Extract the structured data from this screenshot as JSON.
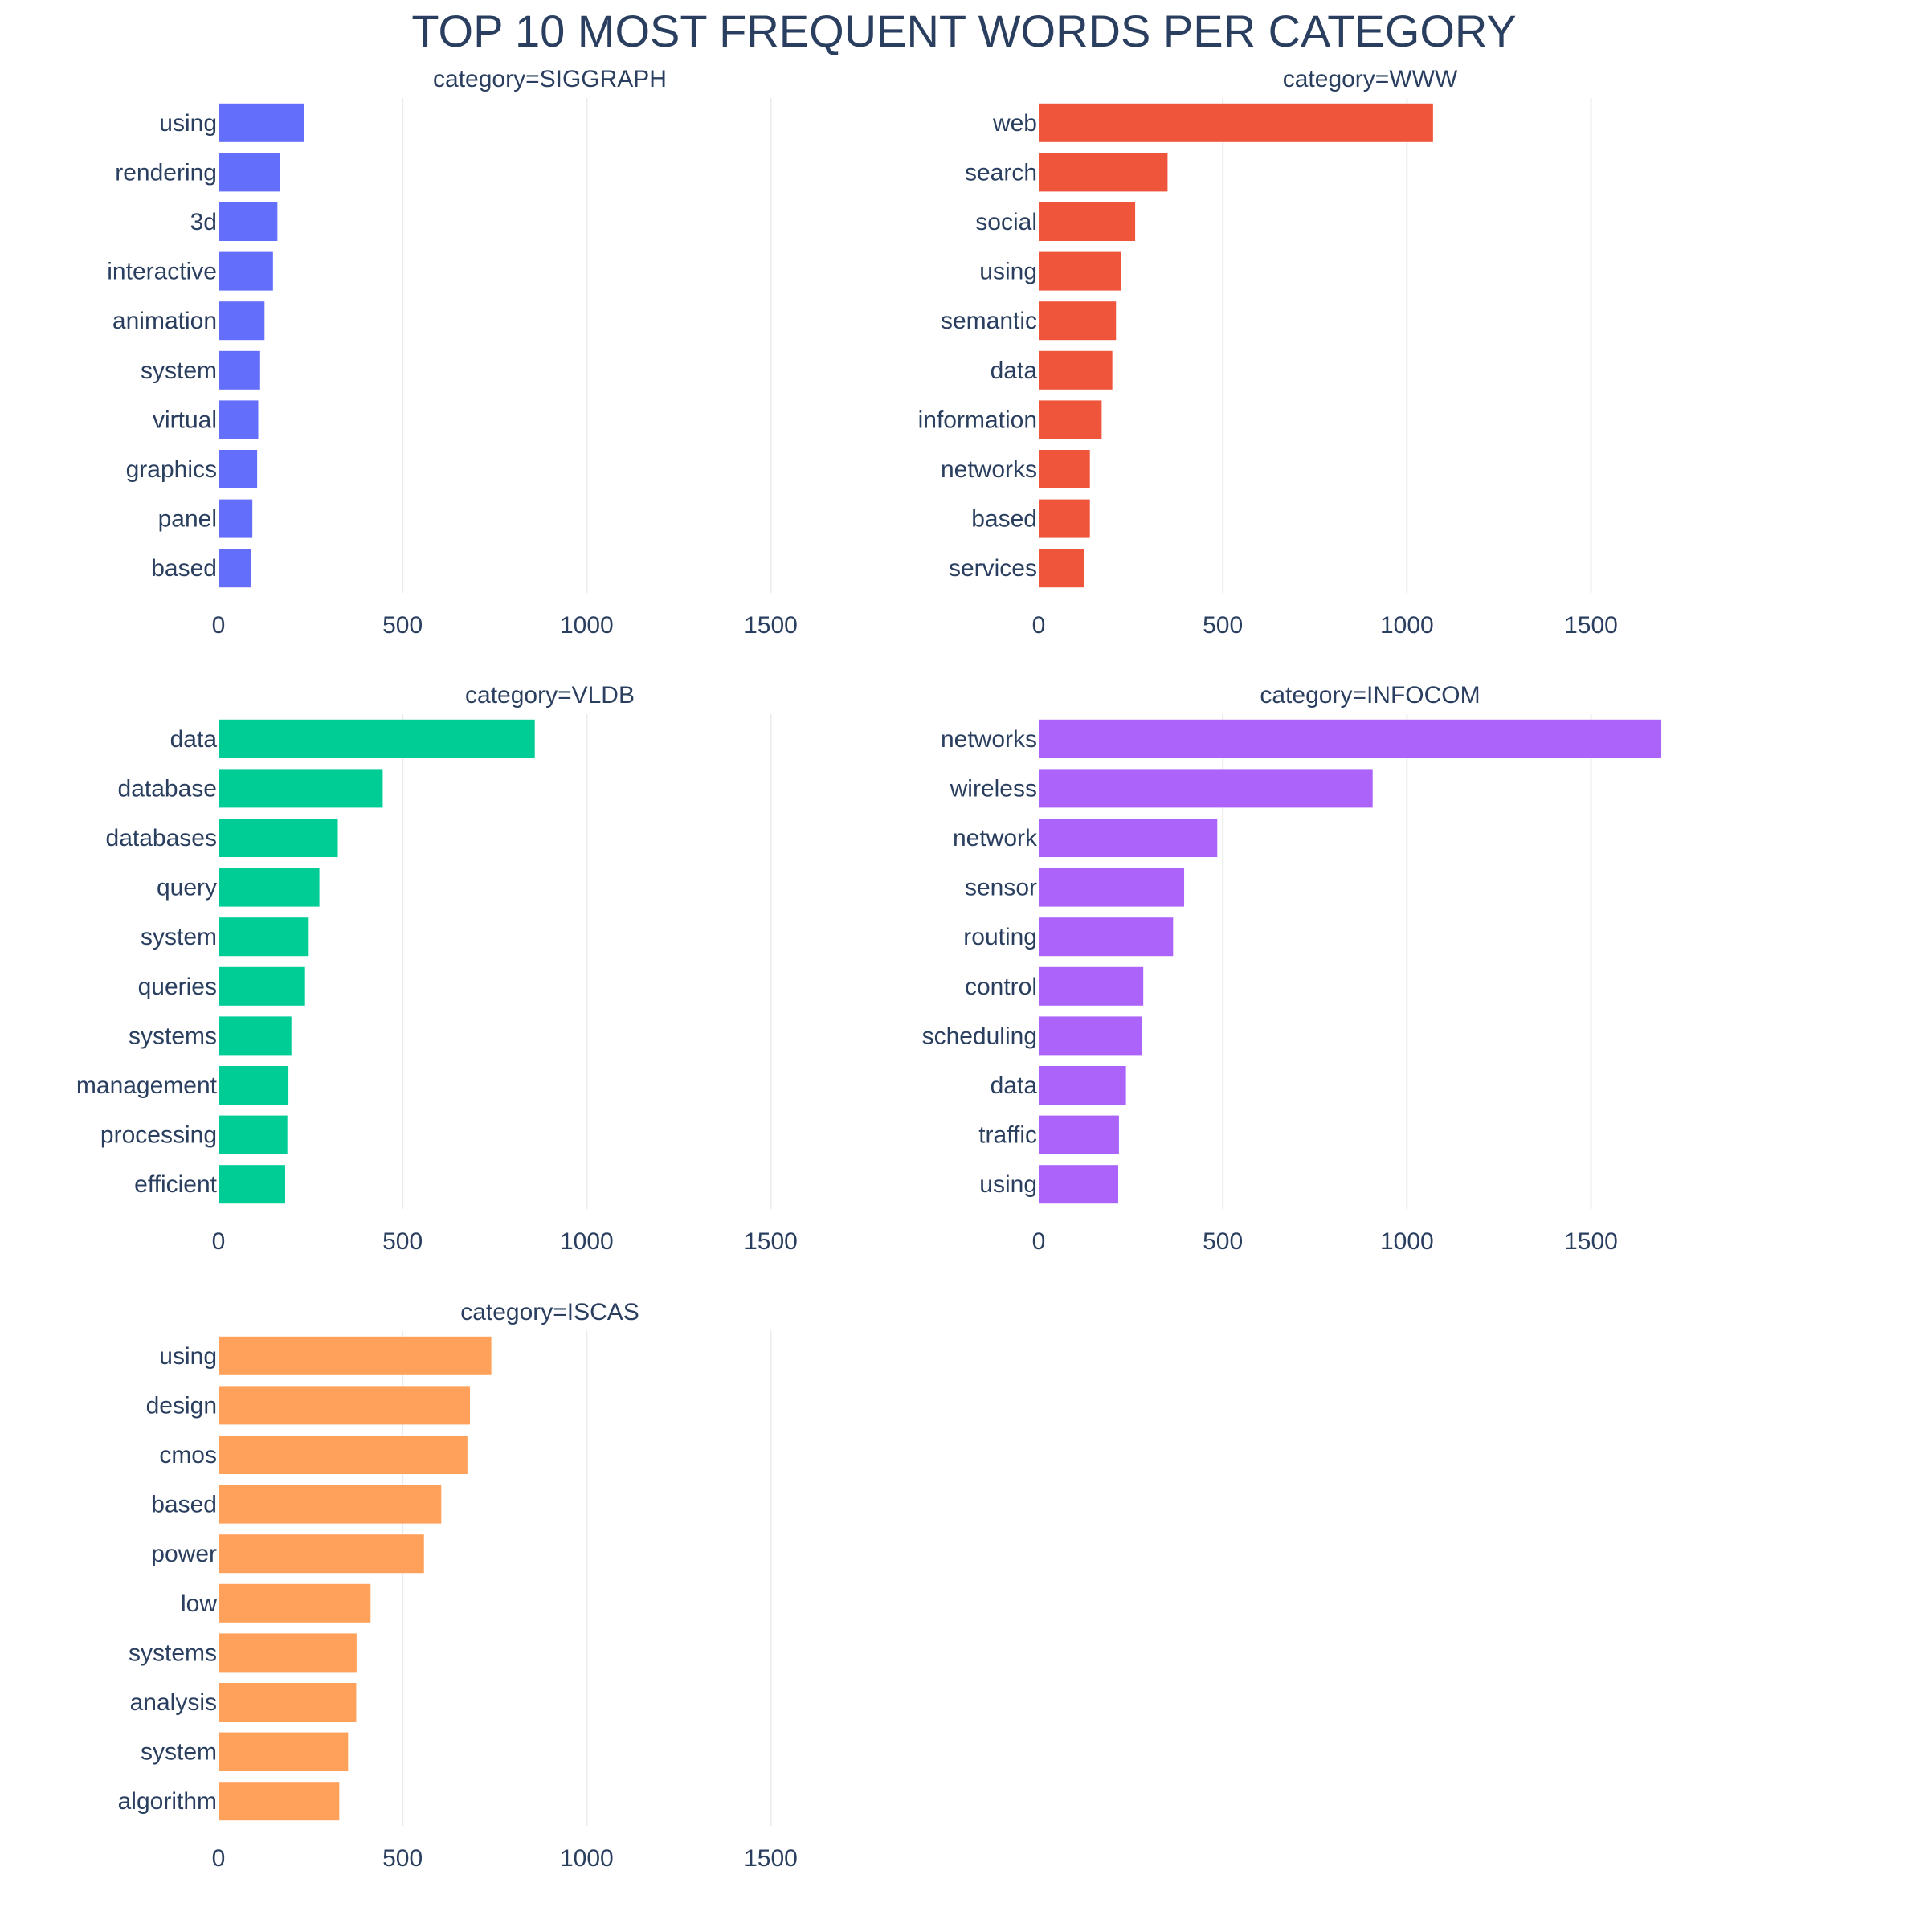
{
  "title": "TOP 10 MOST FREQUENT WORDS PER CATEGORY",
  "chart_data": [
    {
      "type": "bar",
      "orientation": "horizontal",
      "title": "category=SIGGRAPH",
      "color": "#636efa",
      "categories": [
        "using",
        "rendering",
        "3d",
        "interactive",
        "animation",
        "system",
        "virtual",
        "graphics",
        "panel",
        "based"
      ],
      "values": [
        232,
        167,
        160,
        148,
        125,
        113,
        108,
        105,
        92,
        88
      ],
      "xlim": [
        0,
        1800
      ],
      "xticks": [
        "0",
        "500",
        "1000",
        "1500"
      ],
      "xtick_values": [
        0,
        500,
        1000,
        1500
      ]
    },
    {
      "type": "bar",
      "orientation": "horizontal",
      "title": "category=WWW",
      "color": "#ef553b",
      "categories": [
        "web",
        "search",
        "social",
        "using",
        "semantic",
        "data",
        "information",
        "networks",
        "based",
        "services"
      ],
      "values": [
        1071,
        350,
        262,
        224,
        210,
        200,
        171,
        139,
        139,
        124
      ],
      "xlim": [
        0,
        1800
      ],
      "xticks": [
        "0",
        "500",
        "1000",
        "1500"
      ],
      "xtick_values": [
        0,
        500,
        1000,
        1500
      ]
    },
    {
      "type": "bar",
      "orientation": "horizontal",
      "title": "category=VLDB",
      "color": "#00cc96",
      "categories": [
        "data",
        "database",
        "databases",
        "query",
        "system",
        "queries",
        "systems",
        "management",
        "processing",
        "efficient"
      ],
      "values": [
        859,
        446,
        324,
        274,
        245,
        235,
        198,
        190,
        187,
        181
      ],
      "xlim": [
        0,
        1800
      ],
      "xticks": [
        "0",
        "500",
        "1000",
        "1500"
      ],
      "xtick_values": [
        0,
        500,
        1000,
        1500
      ]
    },
    {
      "type": "bar",
      "orientation": "horizontal",
      "title": "category=INFOCOM",
      "color": "#ab63fa",
      "categories": [
        "networks",
        "wireless",
        "network",
        "sensor",
        "routing",
        "control",
        "scheduling",
        "data",
        "traffic",
        "using"
      ],
      "values": [
        1691,
        907,
        485,
        395,
        365,
        284,
        280,
        237,
        218,
        216
      ],
      "xlim": [
        0,
        1800
      ],
      "xticks": [
        "0",
        "500",
        "1000",
        "1500"
      ],
      "xtick_values": [
        0,
        500,
        1000,
        1500
      ]
    },
    {
      "type": "bar",
      "orientation": "horizontal",
      "title": "category=ISCAS",
      "color": "#ffa15a",
      "categories": [
        "using",
        "design",
        "cmos",
        "based",
        "power",
        "low",
        "systems",
        "analysis",
        "system",
        "algorithm"
      ],
      "values": [
        741,
        683,
        676,
        605,
        558,
        413,
        375,
        374,
        352,
        328
      ],
      "xlim": [
        0,
        1800
      ],
      "xticks": [
        "0",
        "500",
        "1000",
        "1500"
      ],
      "xtick_values": [
        0,
        500,
        1000,
        1500
      ]
    }
  ]
}
